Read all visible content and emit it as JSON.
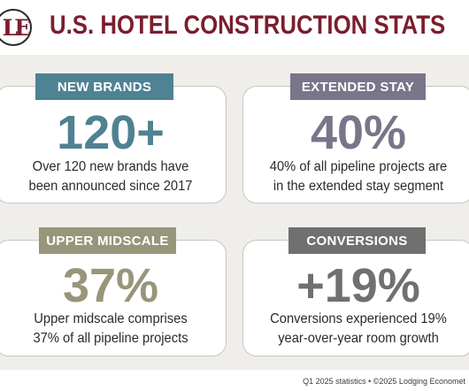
{
  "header": {
    "logo_text": "LE",
    "title": "U.S. HOTEL CONSTRUCTION STATS"
  },
  "colors": {
    "title": "#7b1e2e",
    "new_brands": "#4f8292",
    "extended_stay": "#7a7589",
    "upper_midscale": "#97967a",
    "conversions": "#707070",
    "panel_bg": "#efeeea"
  },
  "cards": [
    {
      "label": "NEW BRANDS",
      "value": "120+",
      "desc_line1": "Over 120 new brands have",
      "desc_line2": "been announced since 2017"
    },
    {
      "label": "EXTENDED STAY",
      "value": "40%",
      "desc_line1": "40% of all pipeline projects are",
      "desc_line2": "in the extended stay segment"
    },
    {
      "label": "UPPER MIDSCALE",
      "value": "37%",
      "desc_line1": "Upper midscale comprises",
      "desc_line2": "37% of all pipeline projects"
    },
    {
      "label": "CONVERSIONS",
      "value": "+19%",
      "desc_line1": "Conversions experienced 19%",
      "desc_line2": "year-over-year room growth"
    }
  ],
  "footer": {
    "note": "Q1 2025 statistics • ©2025 Lodging Economet"
  }
}
